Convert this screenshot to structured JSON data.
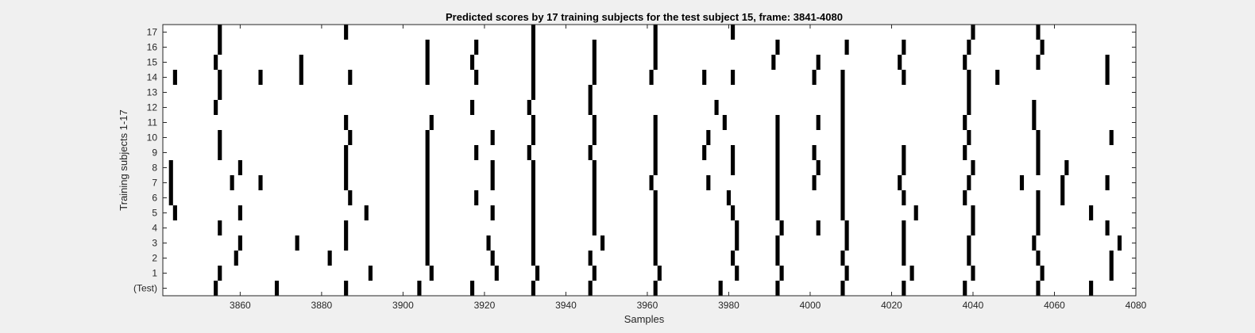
{
  "chart_data": {
    "type": "heatmap",
    "title": "Predicted scores by 17 training subjects for the test subject 15, frame: 3841-4080",
    "xlabel": "Samples",
    "ylabel": "Training subjects 1-17",
    "xlim": [
      3841,
      4080
    ],
    "x_ticks": [
      3860,
      3880,
      3900,
      3920,
      3940,
      3960,
      3980,
      4000,
      4020,
      4040,
      4060,
      4080
    ],
    "y_tick_labels": [
      "(Test)",
      "1",
      "2",
      "3",
      "4",
      "5",
      "6",
      "7",
      "8",
      "9",
      "10",
      "11",
      "12",
      "13",
      "14",
      "15",
      "16",
      "17"
    ],
    "grid": false,
    "colors": {
      "background": "#ffffff",
      "mark": "#000000"
    },
    "rows": [
      {
        "label": "(Test)",
        "marks": [
          3854,
          3869,
          3886,
          3904,
          3917,
          3932,
          3946,
          3962,
          3978,
          3992,
          4008,
          4023,
          4038,
          4056,
          4069
        ]
      },
      {
        "label": "1",
        "marks": [
          3855,
          3892,
          3907,
          3923,
          3933,
          3947,
          3963,
          3982,
          3993,
          4009,
          4025,
          4040,
          4057,
          4074
        ]
      },
      {
        "label": "2",
        "marks": [
          3859,
          3882,
          3906,
          3922,
          3932,
          3946,
          3962,
          3981,
          3992,
          4008,
          4023,
          4039,
          4056,
          4074
        ]
      },
      {
        "label": "3",
        "marks": [
          3860,
          3874,
          3886,
          3906,
          3921,
          3932,
          3949,
          3962,
          3982,
          3992,
          4009,
          4023,
          4039,
          4055,
          4076
        ]
      },
      {
        "label": "4",
        "marks": [
          3855,
          3886,
          3906,
          3932,
          3947,
          3962,
          3982,
          3993,
          4002,
          4009,
          4023,
          4040,
          4056,
          4073
        ]
      },
      {
        "label": "5",
        "marks": [
          3844,
          3860,
          3891,
          3906,
          3922,
          3932,
          3947,
          3962,
          3981,
          3992,
          4008,
          4026,
          4040,
          4056,
          4069
        ]
      },
      {
        "label": "6",
        "marks": [
          3843,
          3887,
          3906,
          3918,
          3932,
          3947,
          3962,
          3980,
          3992,
          4008,
          4023,
          4038,
          4056,
          4062
        ]
      },
      {
        "label": "7",
        "marks": [
          3843,
          3858,
          3865,
          3886,
          3906,
          3922,
          3932,
          3947,
          3961,
          3975,
          3992,
          4001,
          4008,
          4022,
          4039,
          4052,
          4062,
          4073
        ]
      },
      {
        "label": "8",
        "marks": [
          3843,
          3860,
          3886,
          3906,
          3922,
          3932,
          3947,
          3962,
          3981,
          3992,
          4002,
          4008,
          4023,
          4040,
          4056,
          4063
        ]
      },
      {
        "label": "9",
        "marks": [
          3855,
          3886,
          3906,
          3918,
          3931,
          3946,
          3962,
          3974,
          3981,
          3992,
          4001,
          4008,
          4023,
          4038,
          4056
        ]
      },
      {
        "label": "10",
        "marks": [
          3855,
          3887,
          3906,
          3922,
          3932,
          3947,
          3962,
          3975,
          3992,
          4008,
          4039,
          4056,
          4074
        ]
      },
      {
        "label": "11",
        "marks": [
          3886,
          3907,
          3932,
          3947,
          3962,
          3979,
          3992,
          4002,
          4008,
          4038,
          4055
        ]
      },
      {
        "label": "12",
        "marks": [
          3854,
          3917,
          3931,
          3946,
          3977,
          4008,
          4039,
          4055
        ]
      },
      {
        "label": "13",
        "marks": [
          3855,
          3932,
          3946,
          4008,
          4039
        ]
      },
      {
        "label": "14",
        "marks": [
          3844,
          3855,
          3865,
          3875,
          3887,
          3906,
          3918,
          3932,
          3947,
          3961,
          3974,
          3981,
          4001,
          4008,
          4023,
          4039,
          4046,
          4073
        ]
      },
      {
        "label": "15",
        "marks": [
          3854,
          3875,
          3906,
          3917,
          3932,
          3947,
          3962,
          3991,
          4002,
          4022,
          4038,
          4056,
          4073
        ]
      },
      {
        "label": "16",
        "marks": [
          3855,
          3906,
          3918,
          3932,
          3947,
          3962,
          3992,
          4009,
          4023,
          4039,
          4057
        ]
      },
      {
        "label": "17",
        "marks": [
          3855,
          3886,
          3932,
          3962,
          3981,
          4040,
          4056
        ]
      }
    ]
  }
}
